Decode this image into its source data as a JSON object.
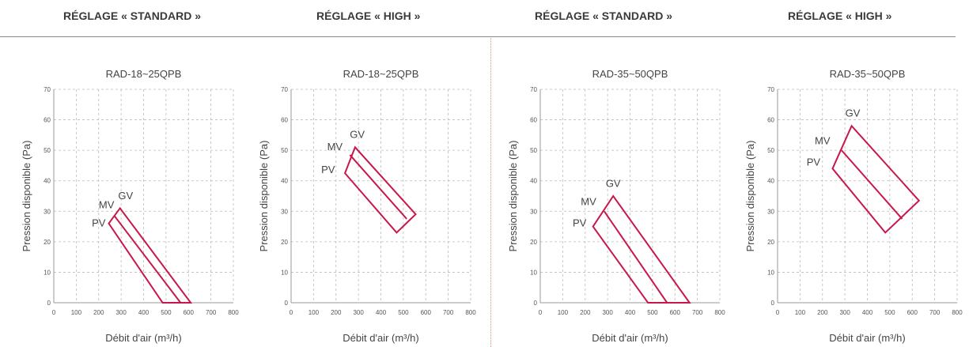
{
  "headers": [
    "RÉGLAGE « STANDARD »",
    "RÉGLAGE « HIGH »",
    "RÉGLAGE « STANDARD »",
    "RÉGLAGE « HIGH »"
  ],
  "colors": {
    "curve": "#c8174a",
    "grid": "#bbbbbb",
    "axis": "#999999"
  },
  "chart_data": [
    {
      "type": "line",
      "title": "RAD-18~25QPB",
      "xlabel": "Débit d'air (m³/h)",
      "ylabel": "Pression disponible (Pa)",
      "xlim": [
        0,
        800
      ],
      "ylim": [
        0,
        70
      ],
      "xticks": [
        0,
        100,
        200,
        300,
        400,
        500,
        600,
        700,
        800
      ],
      "yticks": [
        0,
        10,
        20,
        30,
        40,
        50,
        60,
        70
      ],
      "grid": true,
      "outline": [
        [
          245,
          26
        ],
        [
          295,
          31
        ],
        [
          610,
          0
        ],
        [
          485,
          0
        ]
      ],
      "mid_line": [
        [
          270,
          28.5
        ],
        [
          565,
          0
        ]
      ],
      "speed_labels": [
        {
          "text": "GV",
          "x": 320,
          "y": 34
        },
        {
          "text": "MV",
          "x": 235,
          "y": 31
        },
        {
          "text": "PV",
          "x": 200,
          "y": 25
        }
      ]
    },
    {
      "type": "line",
      "title": "RAD-18~25QPB",
      "xlabel": "Débit d'air (m³/h)",
      "ylabel": "Pression disponible (Pa)",
      "xlim": [
        0,
        800
      ],
      "ylim": [
        0,
        70
      ],
      "xticks": [
        0,
        100,
        200,
        300,
        400,
        500,
        600,
        700,
        800
      ],
      "yticks": [
        0,
        10,
        20,
        30,
        40,
        50,
        60,
        70
      ],
      "grid": true,
      "outline": [
        [
          240,
          42.5
        ],
        [
          285,
          51
        ],
        [
          555,
          29
        ],
        [
          470,
          23
        ]
      ],
      "mid_line": [
        [
          262,
          48.5
        ],
        [
          515,
          27.5
        ]
      ],
      "speed_labels": [
        {
          "text": "GV",
          "x": 295,
          "y": 54
        },
        {
          "text": "MV",
          "x": 195,
          "y": 50
        },
        {
          "text": "PV",
          "x": 165,
          "y": 42.5
        }
      ]
    },
    {
      "type": "line",
      "title": "RAD-35~50QPB",
      "xlabel": "Débit d'air (m³/h)",
      "ylabel": "Pression disponible (Pa)",
      "xlim": [
        0,
        800
      ],
      "ylim": [
        0,
        70
      ],
      "xticks": [
        0,
        100,
        200,
        300,
        400,
        500,
        600,
        700,
        800
      ],
      "yticks": [
        0,
        10,
        20,
        30,
        40,
        50,
        60,
        70
      ],
      "grid": true,
      "outline": [
        [
          235,
          25
        ],
        [
          325,
          35
        ],
        [
          665,
          0
        ],
        [
          480,
          0
        ]
      ],
      "mid_line": [
        [
          285,
          30
        ],
        [
          565,
          0
        ]
      ],
      "speed_labels": [
        {
          "text": "GV",
          "x": 325,
          "y": 38
        },
        {
          "text": "MV",
          "x": 215,
          "y": 32
        },
        {
          "text": "PV",
          "x": 175,
          "y": 25
        }
      ]
    },
    {
      "type": "line",
      "title": "RAD-35~50QPB",
      "xlabel": "Débit d'air (m³/h)",
      "ylabel": "Pression disponible (Pa)",
      "xlim": [
        0,
        800
      ],
      "ylim": [
        0,
        70
      ],
      "xticks": [
        0,
        100,
        200,
        300,
        400,
        500,
        600,
        700,
        800
      ],
      "yticks": [
        0,
        10,
        20,
        30,
        40,
        50,
        60,
        70
      ],
      "grid": true,
      "outline": [
        [
          245,
          44
        ],
        [
          330,
          58
        ],
        [
          630,
          33.5
        ],
        [
          480,
          23
        ]
      ],
      "mid_line": [
        [
          285,
          50
        ],
        [
          555,
          27.5
        ]
      ],
      "speed_labels": [
        {
          "text": "GV",
          "x": 335,
          "y": 61
        },
        {
          "text": "MV",
          "x": 200,
          "y": 52
        },
        {
          "text": "PV",
          "x": 160,
          "y": 45
        }
      ]
    }
  ]
}
